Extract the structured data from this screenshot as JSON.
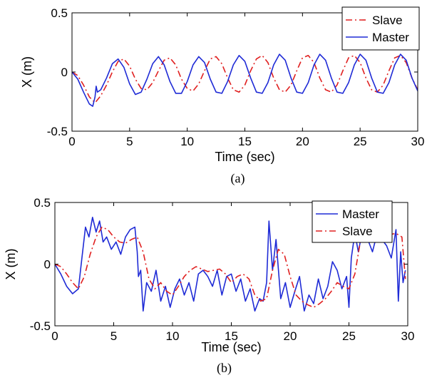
{
  "chart_data": [
    {
      "type": "line",
      "caption": "(a)",
      "xlabel": "Time (sec)",
      "ylabel": "X (m)",
      "xlim": [
        0,
        30
      ],
      "ylim": [
        -0.5,
        0.5
      ],
      "xticks": [
        "0",
        "5",
        "10",
        "15",
        "20",
        "25",
        "30"
      ],
      "yticks": [
        "0.5",
        "0",
        "-0.5"
      ],
      "grid": false,
      "legend_position": "top-right",
      "legend_order": [
        "Slave",
        "Master"
      ],
      "series": [
        {
          "name": "Slave",
          "color": "#e02020",
          "style": "dash-dot",
          "x": [
            0,
            0.5,
            1,
            1.5,
            2,
            2.5,
            3,
            3.5,
            4,
            4.5,
            5,
            5.5,
            6,
            6.5,
            7,
            7.5,
            8,
            8.5,
            9,
            9.5,
            10,
            10.5,
            11,
            11.5,
            12,
            12.5,
            13,
            13.5,
            14,
            14.5,
            15,
            15.5,
            16,
            16.5,
            17,
            17.5,
            18,
            18.5,
            19,
            19.5,
            20,
            20.5,
            21,
            21.5,
            22,
            22.5,
            23,
            23.5,
            24,
            24.5,
            25,
            25.5,
            26,
            26.5,
            27,
            27.5,
            28,
            28.5,
            29,
            29.5,
            30
          ],
          "y": [
            0,
            -0.03,
            -0.11,
            -0.21,
            -0.26,
            -0.2,
            -0.11,
            0.0,
            0.09,
            0.11,
            0.05,
            -0.06,
            -0.14,
            -0.15,
            -0.09,
            0.01,
            0.1,
            0.12,
            0.06,
            -0.06,
            -0.14,
            -0.16,
            -0.1,
            0.01,
            0.11,
            0.13,
            0.07,
            -0.05,
            -0.15,
            -0.17,
            -0.11,
            0.01,
            0.11,
            0.14,
            0.08,
            -0.05,
            -0.15,
            -0.17,
            -0.11,
            0.01,
            0.12,
            0.14,
            0.08,
            -0.05,
            -0.15,
            -0.17,
            -0.11,
            0.01,
            0.12,
            0.14,
            0.08,
            -0.05,
            -0.15,
            -0.17,
            -0.11,
            0.01,
            0.12,
            0.14,
            0.08,
            -0.05,
            -0.15
          ]
        },
        {
          "name": "Master",
          "color": "#1f2bd6",
          "style": "solid",
          "x": [
            0,
            0.5,
            1,
            1.5,
            1.8,
            2.0,
            2.1,
            2.2,
            2.5,
            3,
            3.5,
            4,
            4.5,
            5,
            5.5,
            6,
            6.5,
            7,
            7.5,
            8,
            8.5,
            9,
            9.5,
            10,
            10.5,
            11,
            11.5,
            12,
            12.5,
            13,
            13.5,
            14,
            14.5,
            15,
            15.5,
            16,
            16.5,
            17,
            17.5,
            18,
            18.5,
            19,
            19.5,
            20,
            20.5,
            21,
            21.5,
            22,
            22.5,
            23,
            23.5,
            24,
            24.5,
            25,
            25.5,
            26,
            26.5,
            27,
            27.5,
            28,
            28.5,
            29,
            29.5,
            30
          ],
          "y": [
            0,
            -0.06,
            -0.17,
            -0.27,
            -0.29,
            -0.21,
            -0.12,
            -0.17,
            -0.15,
            -0.05,
            0.07,
            0.11,
            0.04,
            -0.1,
            -0.19,
            -0.17,
            -0.06,
            0.07,
            0.13,
            0.06,
            -0.08,
            -0.18,
            -0.18,
            -0.08,
            0.06,
            0.13,
            0.08,
            -0.06,
            -0.17,
            -0.18,
            -0.08,
            0.06,
            0.14,
            0.09,
            -0.05,
            -0.17,
            -0.18,
            -0.09,
            0.06,
            0.15,
            0.1,
            -0.05,
            -0.17,
            -0.18,
            -0.09,
            0.06,
            0.15,
            0.1,
            -0.05,
            -0.17,
            -0.18,
            -0.09,
            0.06,
            0.15,
            0.1,
            -0.05,
            -0.17,
            -0.18,
            -0.09,
            0.06,
            0.15,
            0.1,
            -0.05,
            -0.16
          ]
        }
      ]
    },
    {
      "type": "line",
      "caption": "(b)",
      "xlabel": "Time (sec)",
      "ylabel": "X (m)",
      "xlim": [
        0,
        30
      ],
      "ylim": [
        -0.5,
        0.5
      ],
      "xticks": [
        "0",
        "5",
        "10",
        "15",
        "20",
        "25",
        "30"
      ],
      "yticks": [
        "0.5",
        "0",
        "-0.5"
      ],
      "grid": false,
      "legend_position": "top-right",
      "legend_order": [
        "Master",
        "Slave"
      ],
      "series": [
        {
          "name": "Master",
          "color": "#1f2bd6",
          "style": "solid",
          "x": [
            0,
            0.5,
            1,
            1.5,
            2,
            2.3,
            2.6,
            2.9,
            3.2,
            3.5,
            3.8,
            4.1,
            4.4,
            4.8,
            5.2,
            5.6,
            6,
            6.4,
            6.8,
            7.0,
            7.1,
            7.3,
            7.5,
            7.8,
            8.2,
            8.6,
            9,
            9.4,
            9.8,
            10.2,
            10.6,
            11,
            11.4,
            11.8,
            12.2,
            12.6,
            13,
            13.4,
            13.8,
            14.2,
            14.6,
            15,
            15.4,
            15.8,
            16.2,
            16.6,
            17,
            17.4,
            17.7,
            18.0,
            18.2,
            18.5,
            18.8,
            19.2,
            19.6,
            20,
            20.4,
            20.8,
            21.2,
            21.6,
            22,
            22.4,
            22.8,
            23.2,
            23.6,
            24,
            24.4,
            24.8,
            25.0,
            25.2,
            25.5,
            25.8,
            26.2,
            26.6,
            27,
            27.4,
            27.8,
            28.2,
            28.6,
            29.0,
            29.2,
            29.4,
            29.6,
            29.8
          ],
          "y": [
            0,
            -0.08,
            -0.18,
            -0.24,
            -0.2,
            0.05,
            0.3,
            0.22,
            0.38,
            0.26,
            0.35,
            0.18,
            0.22,
            0.12,
            0.18,
            0.08,
            0.22,
            0.28,
            0.3,
            0.1,
            -0.1,
            -0.05,
            -0.38,
            -0.15,
            -0.22,
            -0.05,
            -0.3,
            -0.18,
            -0.35,
            -0.2,
            -0.12,
            -0.25,
            -0.15,
            -0.3,
            -0.08,
            -0.05,
            -0.1,
            -0.18,
            -0.05,
            -0.25,
            -0.1,
            -0.08,
            -0.22,
            -0.12,
            -0.3,
            -0.2,
            -0.38,
            -0.28,
            -0.3,
            -0.15,
            0.35,
            -0.05,
            0.2,
            -0.28,
            -0.15,
            -0.35,
            -0.22,
            -0.1,
            -0.38,
            -0.25,
            -0.32,
            -0.12,
            -0.28,
            -0.18,
            0.02,
            -0.05,
            -0.2,
            -0.1,
            -0.35,
            0.05,
            0.25,
            0.1,
            0.3,
            0.2,
            0.1,
            0.25,
            0.2,
            0.15,
            0.05,
            0.28,
            -0.3,
            0.1,
            -0.15,
            -0.05
          ]
        },
        {
          "name": "Slave",
          "color": "#e02020",
          "style": "dash-dot",
          "x": [
            0,
            0.5,
            1,
            1.5,
            2,
            2.5,
            3,
            3.5,
            4,
            4.5,
            5,
            5.5,
            6,
            6.5,
            7,
            7.5,
            8,
            8.5,
            9,
            9.5,
            10,
            10.5,
            11,
            11.5,
            12,
            12.5,
            13,
            13.5,
            14,
            14.5,
            15,
            15.5,
            16,
            16.5,
            17,
            17.5,
            18,
            18.5,
            19,
            19.5,
            20,
            20.5,
            21,
            21.5,
            22,
            22.5,
            23,
            23.5,
            24,
            24.5,
            25,
            25.5,
            26,
            26.5,
            27,
            27.5,
            28,
            28.5,
            29,
            29.5,
            29.8
          ],
          "y": [
            0,
            -0.02,
            -0.08,
            -0.15,
            -0.2,
            -0.1,
            0.08,
            0.22,
            0.3,
            0.28,
            0.22,
            0.18,
            0.17,
            0.2,
            0.22,
            0.1,
            -0.12,
            -0.2,
            -0.15,
            -0.22,
            -0.25,
            -0.18,
            -0.1,
            -0.05,
            -0.02,
            -0.04,
            -0.06,
            -0.05,
            -0.04,
            -0.08,
            -0.15,
            -0.1,
            -0.08,
            -0.12,
            -0.25,
            -0.3,
            -0.28,
            -0.05,
            0.12,
            0.08,
            -0.1,
            -0.25,
            -0.3,
            -0.33,
            -0.35,
            -0.32,
            -0.28,
            -0.22,
            -0.15,
            -0.18,
            -0.2,
            -0.08,
            0.2,
            0.3,
            0.26,
            0.2,
            0.22,
            0.24,
            0.25,
            0.22,
            -0.12
          ]
        }
      ]
    }
  ]
}
